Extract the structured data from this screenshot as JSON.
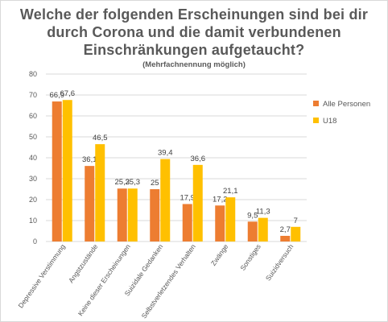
{
  "title_lines": [
    "Welche der folgenden Erscheinungen sind bei dir",
    "durch Corona und die damit verbundenen",
    "Einschränkungen aufgetaucht?"
  ],
  "subtitle": "(Mehrfachnennung möglich)",
  "colors": {
    "series_1": "#ED7D31",
    "series_2": "#FFC000",
    "grid": "#d9d9d9",
    "text": "#595959"
  },
  "chart_data": {
    "type": "bar",
    "title": "Welche der folgenden Erscheinungen sind bei dir durch Corona und die damit verbundenen Einschränkungen aufgetaucht?",
    "subtitle": "(Mehrfachnennung möglich)",
    "categories": [
      "Depressive Verstimmung",
      "Angstzustände",
      "Keine dieser Erscheinungen",
      "Suizidale Gedanken",
      "Selbstverletzendes Verhalten",
      "Zwänge",
      "Sonstiges",
      "Suizidversuch"
    ],
    "series": [
      {
        "name": "Alle Personen",
        "values": [
          66.9,
          36.1,
          25.3,
          25,
          17.9,
          17.2,
          9.5,
          2.7
        ],
        "labels": [
          "66,9",
          "36,1",
          "25,3",
          "25",
          "17,9",
          "17,2",
          "9,5",
          "2,7"
        ]
      },
      {
        "name": "U18",
        "values": [
          67.6,
          46.5,
          25.3,
          39.4,
          36.6,
          21.1,
          11.3,
          7
        ],
        "labels": [
          "67,6",
          "46,5",
          "25,3",
          "39,4",
          "36,6",
          "21,1",
          "11,3",
          "7"
        ]
      }
    ],
    "ylim": [
      0,
      80
    ],
    "yticks": [
      0,
      10,
      20,
      30,
      40,
      50,
      60,
      70,
      80
    ],
    "grid": true,
    "legend_position": "right"
  }
}
